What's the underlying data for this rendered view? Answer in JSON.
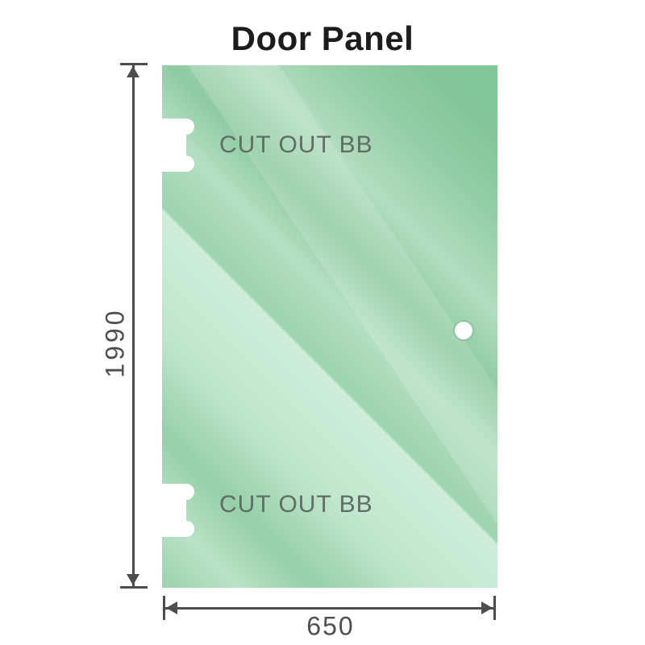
{
  "title": "Door Panel",
  "panel": {
    "cutouts": [
      {
        "label": "CUT OUT BB",
        "position": "top-left"
      },
      {
        "label": "CUT OUT BB",
        "position": "bottom-left"
      }
    ],
    "handle_hole": {
      "position": "middle-right"
    }
  },
  "dimensions": {
    "height": {
      "value": "1990",
      "orientation": "vertical"
    },
    "width": {
      "value": "650",
      "orientation": "horizontal"
    }
  },
  "colors": {
    "page_bg": "#ffffff",
    "title_text": "#1c1c1c",
    "glass_base": "#8ecaa1",
    "glass_dark": "#7fc897",
    "glass_light": "#c0e6cd",
    "hole_ring": "#8cc3a1",
    "cutout_text": "#5f6d63",
    "dim_text": "#4f4f4f",
    "line": "#4d4d4d"
  }
}
